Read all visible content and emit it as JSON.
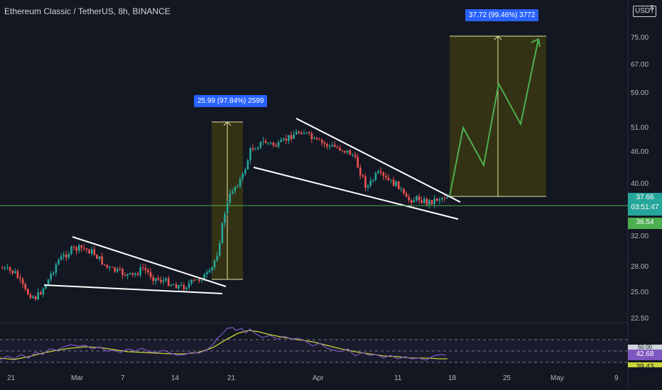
{
  "header": {
    "title": "Ethereum Classic / TetherUS, 8h, BINANCE",
    "unit": "USDT",
    "top_tick": "8"
  },
  "price_axis": {
    "ticks": [
      "75.00",
      "67.00",
      "59.00",
      "51.00",
      "46.00",
      "40.00",
      "32.00",
      "28.00",
      "25.00",
      "22.50"
    ],
    "current_price": "37.66",
    "countdown": "03:51:47",
    "marker_price": "36.54"
  },
  "time_axis": {
    "ticks": [
      "21",
      "Mar",
      "7",
      "14",
      "21",
      "Apr",
      "11",
      "18",
      "25",
      "May",
      "9"
    ]
  },
  "rsi": {
    "value": "42.68",
    "level": "50.00",
    "ma_value": "39.43"
  },
  "annotations": {
    "measure_1": "25.99 (97.84%) 2599",
    "measure_2": "37.72 (99.46%) 3772"
  },
  "colors": {
    "background": "#131722",
    "bull": "#26a69a",
    "bear": "#ef5350",
    "range_fill": "#3d3a12",
    "projection": "#4caf50",
    "callout": "#2962ff",
    "rsi_line": "#7e57c2",
    "rsi_ma": "#c8d63a"
  }
}
